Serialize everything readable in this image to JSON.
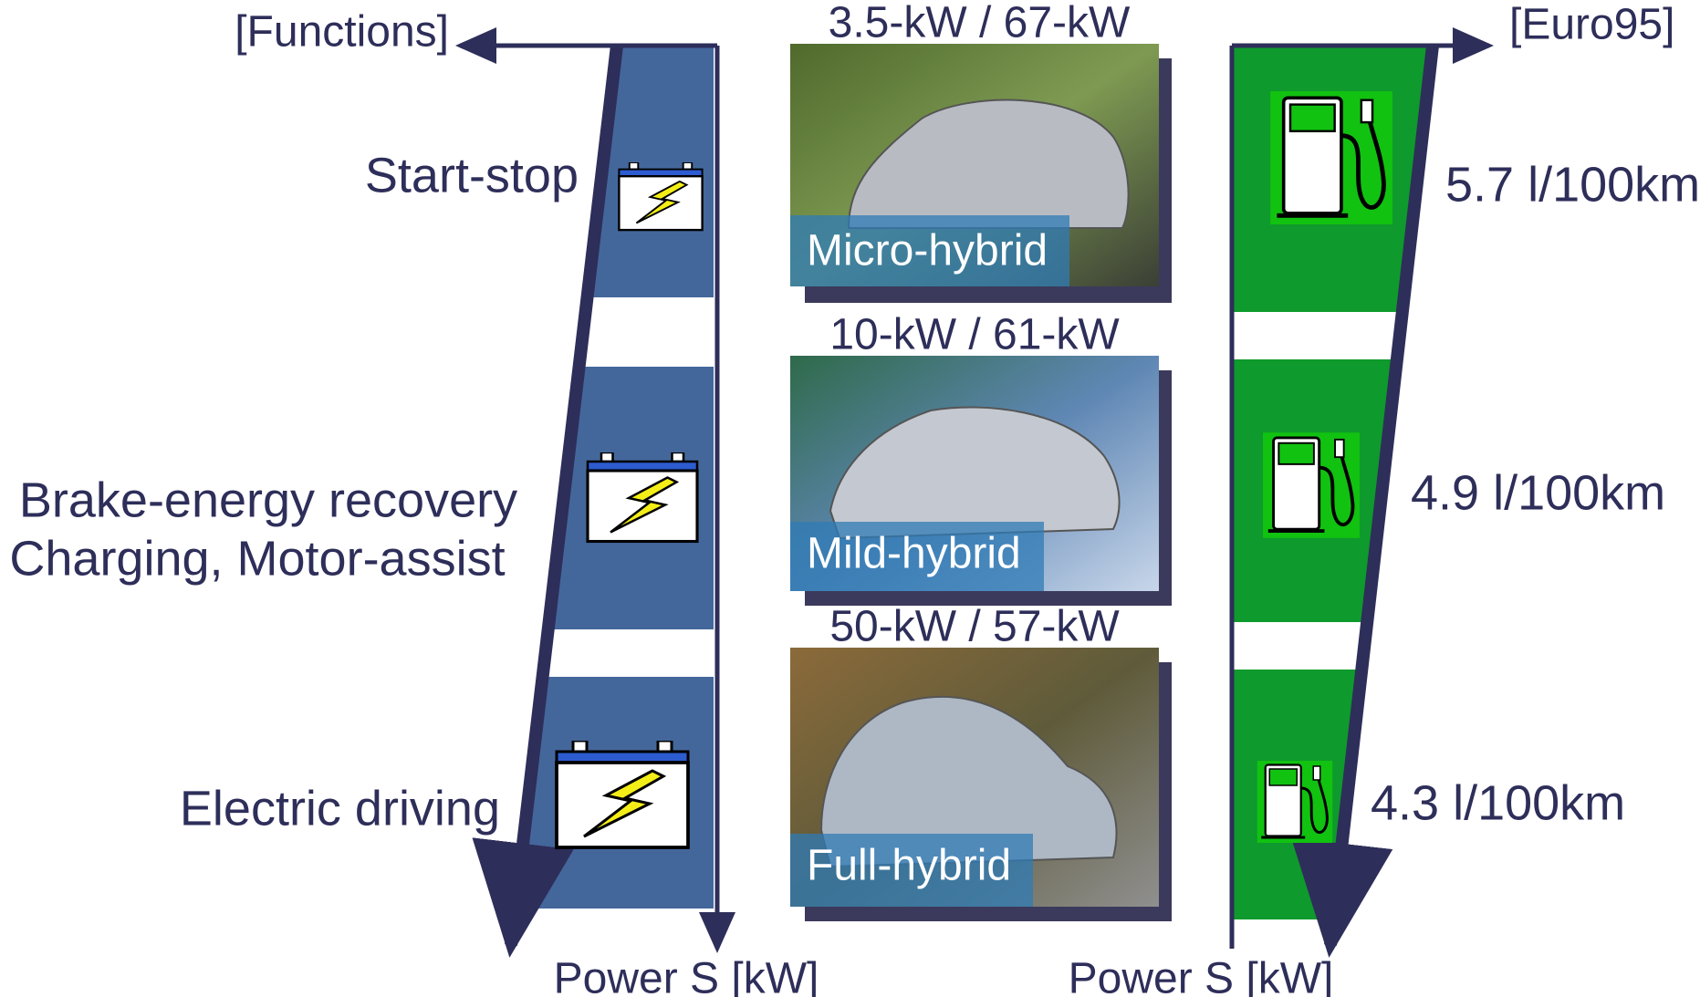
{
  "left_axis": {
    "label": "[Functions]",
    "bottom_label": "Power S [kW]"
  },
  "right_axis": {
    "label": "[Euro95]",
    "bottom_label": "Power S [kW]"
  },
  "functions": [
    {
      "lines": [
        "Start-stop"
      ]
    },
    {
      "lines": [
        "Brake-energy recovery",
        "Charging, Motor-assist"
      ]
    },
    {
      "lines": [
        "Electric driving"
      ]
    }
  ],
  "cars": [
    {
      "power": "3.5-kW / 67-kW",
      "label": "Micro-hybrid"
    },
    {
      "power": "10-kW / 61-kW",
      "label": "Mild-hybrid"
    },
    {
      "power": "50-kW / 57-kW",
      "label": "Full-hybrid"
    }
  ],
  "consumption": [
    "5.7 l/100km",
    "4.9 l/100km",
    "4.3 l/100km"
  ]
}
